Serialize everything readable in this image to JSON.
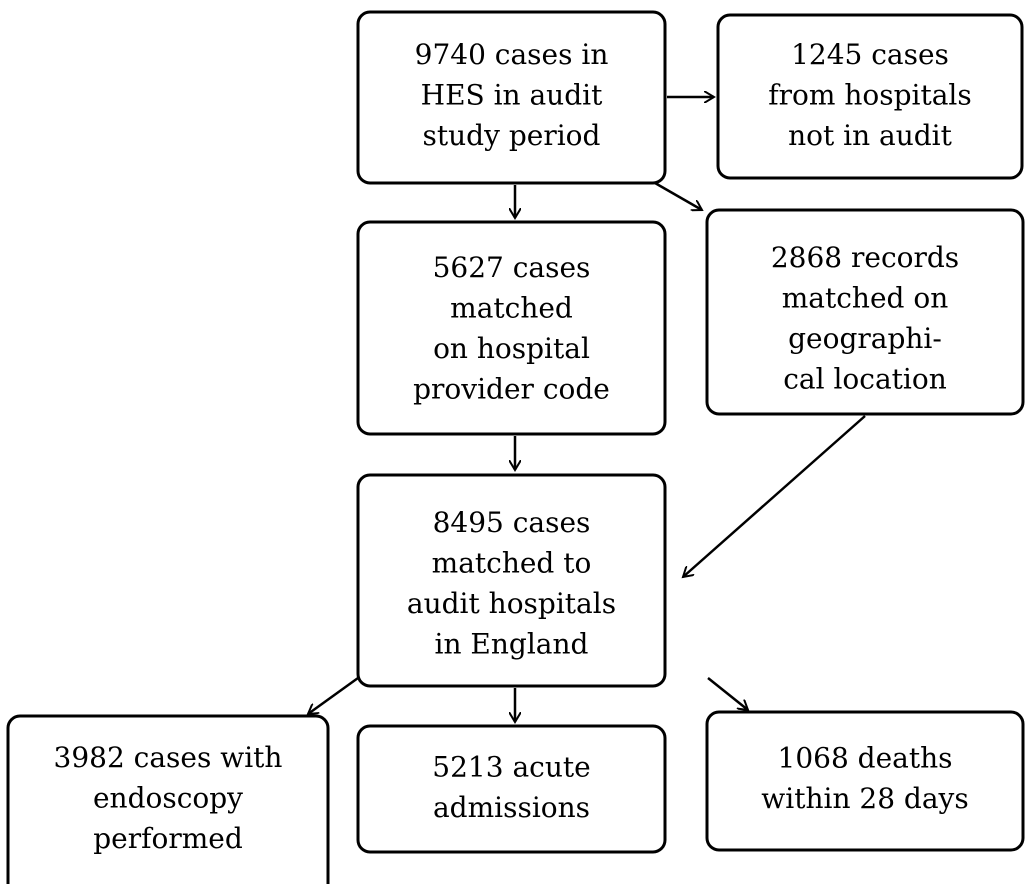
{
  "nodes": [
    {
      "lines": [
        "9740 cases in",
        "HES in audit",
        "study period"
      ]
    },
    {
      "lines": [
        "1245 cases",
        "from hospitals",
        "not in audit"
      ]
    },
    {
      "lines": [
        "5627 cases",
        "matched",
        "on hospital",
        "provider code"
      ]
    },
    {
      "lines": [
        "2868 records",
        "matched on",
        "geographi-",
        "cal location"
      ]
    },
    {
      "lines": [
        "8495 cases",
        "matched to",
        "audit hospitals",
        "in England"
      ]
    },
    {
      "lines": [
        "3982 cases with",
        "endoscopy",
        "performed"
      ]
    },
    {
      "lines": [
        "5213 acute",
        "admissions"
      ]
    },
    {
      "lines": [
        "1068 deaths",
        "within 28 days"
      ]
    }
  ]
}
